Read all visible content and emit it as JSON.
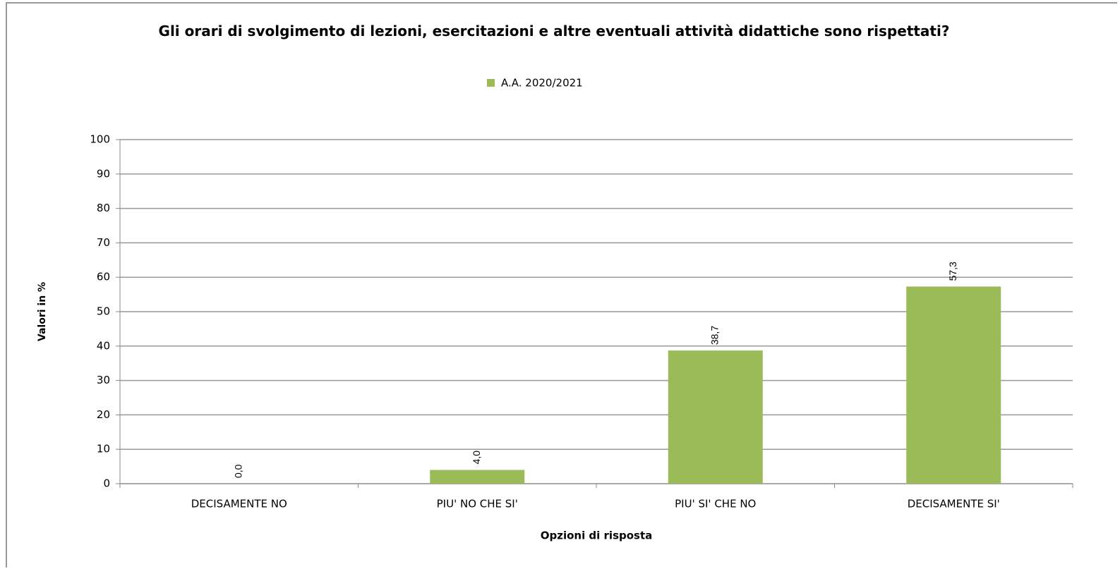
{
  "chart_data": {
    "type": "bar",
    "title": "Gli orari di svolgimento di lezioni, esercitazioni e altre eventuali attività didattiche sono rispettati?",
    "x_label": "Opzioni di risposta",
    "y_label": "Valori in %",
    "categories": [
      "DECISAMENTE NO",
      "PIU' NO CHE SI'",
      "PIU' SI' CHE NO",
      "DECISAMENTE SI'"
    ],
    "series": [
      {
        "name": "A.A. 2020/2021",
        "color": "#9bbb59",
        "values": [
          0.0,
          4.0,
          38.7,
          57.3
        ],
        "value_labels": [
          "0,0",
          "4,0",
          "38,7",
          "57,3"
        ]
      }
    ],
    "ylim": [
      0,
      100
    ],
    "yticks": [
      0,
      10,
      20,
      30,
      40,
      50,
      60,
      70,
      80,
      90,
      100
    ],
    "grid": true,
    "legend": "top"
  }
}
